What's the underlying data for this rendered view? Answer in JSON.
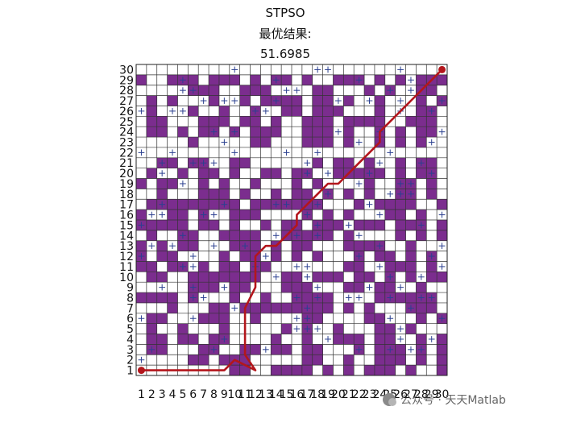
{
  "chart_data": {
    "type": "heatmap",
    "title": "STPSO",
    "subtitle": "最优结果:",
    "result": "51.6985",
    "grid_size": 30,
    "x_ticks": [
      1,
      2,
      3,
      4,
      5,
      6,
      7,
      8,
      9,
      10,
      11,
      12,
      13,
      14,
      15,
      16,
      17,
      18,
      19,
      20,
      21,
      22,
      23,
      24,
      25,
      26,
      27,
      28,
      29,
      30
    ],
    "y_ticks": [
      1,
      2,
      3,
      4,
      5,
      6,
      7,
      8,
      9,
      10,
      11,
      12,
      13,
      14,
      15,
      16,
      17,
      18,
      19,
      20,
      21,
      22,
      23,
      24,
      25,
      26,
      27,
      28,
      29,
      30
    ],
    "obstacle_rows_top_to_bottom": [
      "000000000000000000000000000000",
      "100111011101011010011101010111",
      "000001110011100001100010100110",
      "010100010010111101101001000101",
      "010001001001001101110001000110",
      "011000111011010011101111001110",
      "011010110101110011101001010110",
      "000001000001100011101001010100",
      "000000000000000000000000000000",
      "001101100110000001011010010110",
      "010010110100110110011111010110",
      "101100101001000101000010011010",
      "001000111010010110101010011010",
      "011111111101111111000101111001",
      "100110100111000010101000110100",
      "111110110100101101110111011101",
      "010011001111001111101000010101",
      "101011000111010110001111001000",
      "101100001011010101000101101010",
      "110110101101100000001100111010",
      "011001111111001101110110101011",
      "000001110110001110001101100100",
      "111101000100100111100001111110",
      "000100011011111111101010001110",
      "011000111001000011000011000101",
      "010010001000001010010001101000",
      "011011011000010010011101100101",
      "011000110011011011000101110101",
      "000001101110000011001001110101",
      "000000000110011110101011101001"
    ],
    "cross_cells": [
      [
        1,
        2
      ],
      [
        2,
        3
      ],
      [
        8,
        3
      ],
      [
        13,
        3
      ],
      [
        22,
        3
      ],
      [
        25,
        3
      ],
      [
        27,
        3
      ],
      [
        28,
        3
      ],
      [
        9,
        4
      ],
      [
        19,
        4
      ],
      [
        26,
        4
      ],
      [
        29,
        4
      ],
      [
        16,
        5
      ],
      [
        17,
        5
      ],
      [
        18,
        5
      ],
      [
        26,
        5
      ],
      [
        1,
        6
      ],
      [
        6,
        6
      ],
      [
        16,
        6
      ],
      [
        17,
        6
      ],
      [
        25,
        6
      ],
      [
        30,
        6
      ],
      [
        10,
        7
      ],
      [
        17,
        7
      ],
      [
        27,
        7
      ],
      [
        6,
        8
      ],
      [
        7,
        8
      ],
      [
        16,
        8
      ],
      [
        18,
        8
      ],
      [
        21,
        8
      ],
      [
        22,
        8
      ],
      [
        25,
        8
      ],
      [
        28,
        8
      ],
      [
        29,
        8
      ],
      [
        3,
        9
      ],
      [
        6,
        9
      ],
      [
        9,
        9
      ],
      [
        18,
        9
      ],
      [
        23,
        9
      ],
      [
        26,
        9
      ],
      [
        14,
        10
      ],
      [
        17,
        10
      ],
      [
        25,
        10
      ],
      [
        28,
        10
      ],
      [
        5,
        11
      ],
      [
        6,
        11
      ],
      [
        12,
        11
      ],
      [
        16,
        11
      ],
      [
        17,
        11
      ],
      [
        24,
        11
      ],
      [
        30,
        11
      ],
      [
        1,
        12
      ],
      [
        6,
        12
      ],
      [
        13,
        12
      ],
      [
        22,
        12
      ],
      [
        29,
        12
      ],
      [
        2,
        13
      ],
      [
        4,
        13
      ],
      [
        8,
        13
      ],
      [
        11,
        13
      ],
      [
        24,
        13
      ],
      [
        30,
        13
      ],
      [
        5,
        14
      ],
      [
        14,
        14
      ],
      [
        16,
        14
      ],
      [
        18,
        14
      ],
      [
        22,
        14
      ],
      [
        1,
        15
      ],
      [
        18,
        15
      ],
      [
        21,
        15
      ],
      [
        28,
        15
      ],
      [
        2,
        16
      ],
      [
        3,
        16
      ],
      [
        7,
        16
      ],
      [
        8,
        16
      ],
      [
        17,
        16
      ],
      [
        24,
        16
      ],
      [
        30,
        16
      ],
      [
        3,
        17
      ],
      [
        9,
        17
      ],
      [
        14,
        17
      ],
      [
        15,
        17
      ],
      [
        18,
        17
      ],
      [
        23,
        17
      ],
      [
        19,
        18
      ],
      [
        25,
        18
      ],
      [
        26,
        18
      ],
      [
        27,
        18
      ],
      [
        5,
        19
      ],
      [
        22,
        19
      ],
      [
        26,
        19
      ],
      [
        27,
        19
      ],
      [
        3,
        20
      ],
      [
        17,
        20
      ],
      [
        19,
        20
      ],
      [
        23,
        20
      ],
      [
        29,
        20
      ],
      [
        3,
        21
      ],
      [
        6,
        21
      ],
      [
        7,
        21
      ],
      [
        8,
        21
      ],
      [
        17,
        21
      ],
      [
        24,
        21
      ],
      [
        28,
        21
      ],
      [
        1,
        22
      ],
      [
        4,
        22
      ],
      [
        10,
        22
      ],
      [
        15,
        22
      ],
      [
        18,
        22
      ],
      [
        25,
        22
      ],
      [
        9,
        23
      ],
      [
        22,
        23
      ],
      [
        29,
        23
      ],
      [
        8,
        24
      ],
      [
        10,
        24
      ],
      [
        20,
        24
      ],
      [
        24,
        24
      ],
      [
        30,
        24
      ],
      [
        1,
        26
      ],
      [
        4,
        26
      ],
      [
        5,
        26
      ],
      [
        12,
        26
      ],
      [
        13,
        26
      ],
      [
        26,
        26
      ],
      [
        29,
        26
      ],
      [
        7,
        27
      ],
      [
        9,
        27
      ],
      [
        10,
        27
      ],
      [
        14,
        27
      ],
      [
        20,
        27
      ],
      [
        23,
        27
      ],
      [
        26,
        27
      ],
      [
        30,
        27
      ],
      [
        5,
        28
      ],
      [
        6,
        28
      ],
      [
        15,
        28
      ],
      [
        16,
        28
      ],
      [
        25,
        28
      ],
      [
        27,
        28
      ],
      [
        5,
        29
      ],
      [
        14,
        29
      ],
      [
        22,
        29
      ],
      [
        27,
        29
      ],
      [
        10,
        30
      ],
      [
        18,
        30
      ],
      [
        19,
        30
      ],
      [
        26,
        30
      ]
    ],
    "path": [
      [
        1,
        1
      ],
      [
        9,
        1
      ],
      [
        10,
        2
      ],
      [
        11,
        1.5
      ],
      [
        12,
        1
      ],
      [
        11,
        2.5
      ],
      [
        11,
        7
      ],
      [
        12,
        9
      ],
      [
        12,
        12
      ],
      [
        13,
        13
      ],
      [
        14,
        13
      ],
      [
        15,
        14
      ],
      [
        16,
        15
      ],
      [
        16,
        16
      ],
      [
        17,
        17
      ],
      [
        18,
        18
      ],
      [
        19,
        19
      ],
      [
        20,
        19
      ],
      [
        21,
        20
      ],
      [
        22,
        21
      ],
      [
        23,
        22
      ],
      [
        24,
        23
      ],
      [
        24,
        24
      ],
      [
        25,
        25
      ],
      [
        26,
        26
      ],
      [
        27,
        27
      ],
      [
        28,
        28
      ],
      [
        29,
        29
      ],
      [
        30,
        30
      ]
    ],
    "start": [
      1,
      1
    ],
    "goal": [
      30,
      30
    ],
    "colors": {
      "obstacle": "#7b2d8e",
      "free": "#ffffff",
      "grid": "#333333",
      "path": "#b3161c",
      "cross": "#2b4090"
    }
  },
  "watermark": "公众号 · 天天Matlab"
}
